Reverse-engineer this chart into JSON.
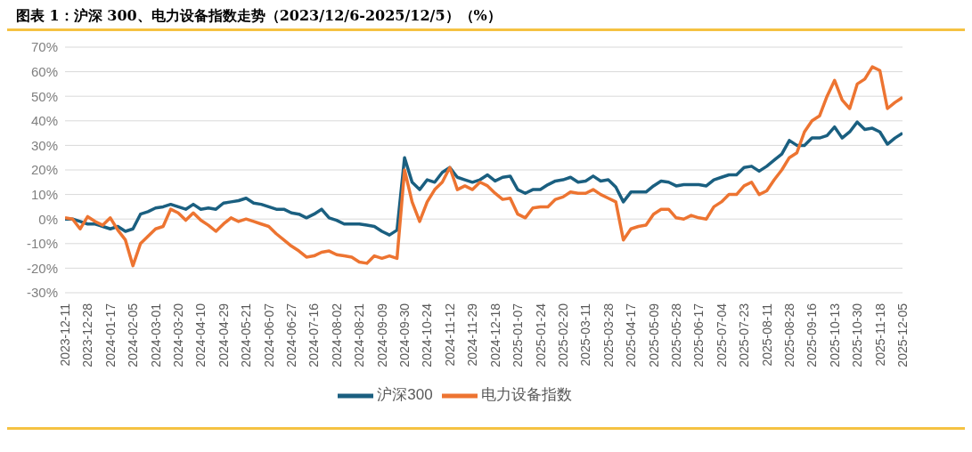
{
  "chart_data": {
    "type": "line",
    "title": "图表 1：沪深 300、电力设备指数走势（2023/12/6-2025/12/5）（%）",
    "categories": [
      "2023-12-11",
      null,
      null,
      "2023-12-28",
      null,
      null,
      "2024-01-17",
      null,
      null,
      "2024-02-05",
      null,
      null,
      "2024-03-01",
      null,
      null,
      "2024-03-20",
      null,
      null,
      "2024-04-10",
      null,
      null,
      "2024-04-29",
      null,
      null,
      "2024-05-21",
      null,
      null,
      "2024-06-07",
      null,
      null,
      "2024-06-27",
      null,
      null,
      "2024-07-16",
      null,
      null,
      "2024-08-02",
      null,
      null,
      "2024-08-21",
      null,
      null,
      "2024-09-09",
      null,
      null,
      "2024-09-30",
      null,
      null,
      "2024-10-24",
      null,
      null,
      "2024-11-12",
      null,
      null,
      "2024-11-29",
      null,
      null,
      "2024-12-18",
      null,
      null,
      "2025-01-07",
      null,
      null,
      "2025-01-24",
      null,
      null,
      "2025-02-20",
      null,
      null,
      "2025-03-11",
      null,
      null,
      "2025-03-28",
      null,
      null,
      "2025-04-17",
      null,
      null,
      "2025-05-09",
      null,
      null,
      "2025-05-28",
      null,
      null,
      "2025-06-17",
      null,
      null,
      "2025-07-04",
      null,
      null,
      "2025-07-23",
      null,
      null,
      "2025-08-11",
      null,
      null,
      "2025-08-28",
      null,
      null,
      "2025-09-16",
      null,
      null,
      "2025-10-13",
      null,
      null,
      "2025-10-30",
      null,
      null,
      "2025-11-18",
      null,
      null,
      "2025-12-05"
    ],
    "series": [
      {
        "name": "沪深300",
        "color": "#1a5f80",
        "values": [
          0,
          0,
          -1,
          -2,
          -2,
          -3,
          -4,
          -3,
          -5,
          -4,
          2,
          3,
          4.5,
          5,
          6,
          5,
          4,
          6,
          4,
          4.5,
          4,
          6.5,
          7,
          7.5,
          8.5,
          6.5,
          6,
          5,
          4,
          4,
          2.5,
          2,
          0.5,
          2,
          4,
          0.5,
          -0.5,
          -2,
          -2,
          -2,
          -2.5,
          -3,
          -5,
          -6.5,
          -4.5,
          25,
          15,
          12,
          16,
          15,
          19,
          21,
          17,
          16,
          15,
          16,
          18,
          15.5,
          17,
          17.5,
          12,
          10.5,
          12,
          12,
          14,
          15.5,
          16,
          17,
          15,
          15.5,
          17.5,
          15.5,
          16,
          13,
          7,
          11,
          11,
          11,
          13.5,
          15.5,
          15,
          13.5,
          14,
          14,
          14,
          13.5,
          16,
          17,
          18,
          18,
          21,
          21.5,
          19.5,
          21.5,
          24,
          26.5,
          32,
          30,
          30,
          33,
          33,
          34,
          37.5,
          33,
          35.5,
          39.5,
          36.5,
          37,
          35.5,
          30.5,
          33,
          35
        ]
      },
      {
        "name": "电力设备指数",
        "color": "#ed7431",
        "values": [
          0.5,
          0,
          -4,
          1,
          -1,
          -2.5,
          0.5,
          -4.5,
          -8.5,
          -19,
          -10,
          -7,
          -4,
          -3,
          4,
          2.5,
          -0.5,
          2.5,
          -0.5,
          -2.5,
          -5,
          -2,
          0.5,
          -1,
          0,
          -1,
          -2,
          -3,
          -6,
          -8.5,
          -11,
          -13,
          -15.5,
          -15,
          -13.5,
          -13,
          -14.5,
          -15,
          -15.5,
          -17.5,
          -18,
          -15,
          -16,
          -15,
          -16,
          20,
          7,
          -1,
          7,
          12,
          15,
          21,
          12,
          13.5,
          12,
          15,
          13.5,
          10.5,
          8,
          8.5,
          2,
          0.5,
          4.5,
          5,
          5,
          8,
          9,
          11,
          10.5,
          10.5,
          12,
          10,
          8.5,
          7,
          -8.5,
          -4,
          -3,
          -2.5,
          2,
          4,
          4,
          0.5,
          0,
          1.5,
          0.5,
          0,
          5,
          7,
          10,
          10,
          13.5,
          15,
          10,
          11.5,
          16,
          20,
          25,
          27,
          35.5,
          40,
          42,
          50,
          56.5,
          48.5,
          45,
          55,
          57,
          62,
          60.5,
          45,
          47.5,
          49.5
        ]
      }
    ],
    "ylim": [
      -30,
      70
    ],
    "yticks": [
      {
        "value": -30,
        "label": "-30%"
      },
      {
        "value": -20,
        "label": "-20%"
      },
      {
        "value": -10,
        "label": "-10%"
      },
      {
        "value": 0,
        "label": "0%"
      },
      {
        "value": 10,
        "label": "10%"
      },
      {
        "value": 20,
        "label": "20%"
      },
      {
        "value": 30,
        "label": "30%"
      },
      {
        "value": 40,
        "label": "40%"
      },
      {
        "value": 50,
        "label": "50%"
      },
      {
        "value": 60,
        "label": "60%"
      },
      {
        "value": 70,
        "label": "70%"
      }
    ],
    "grid": "y",
    "legend": "bottom",
    "marker": "none",
    "line_style": "solid"
  }
}
